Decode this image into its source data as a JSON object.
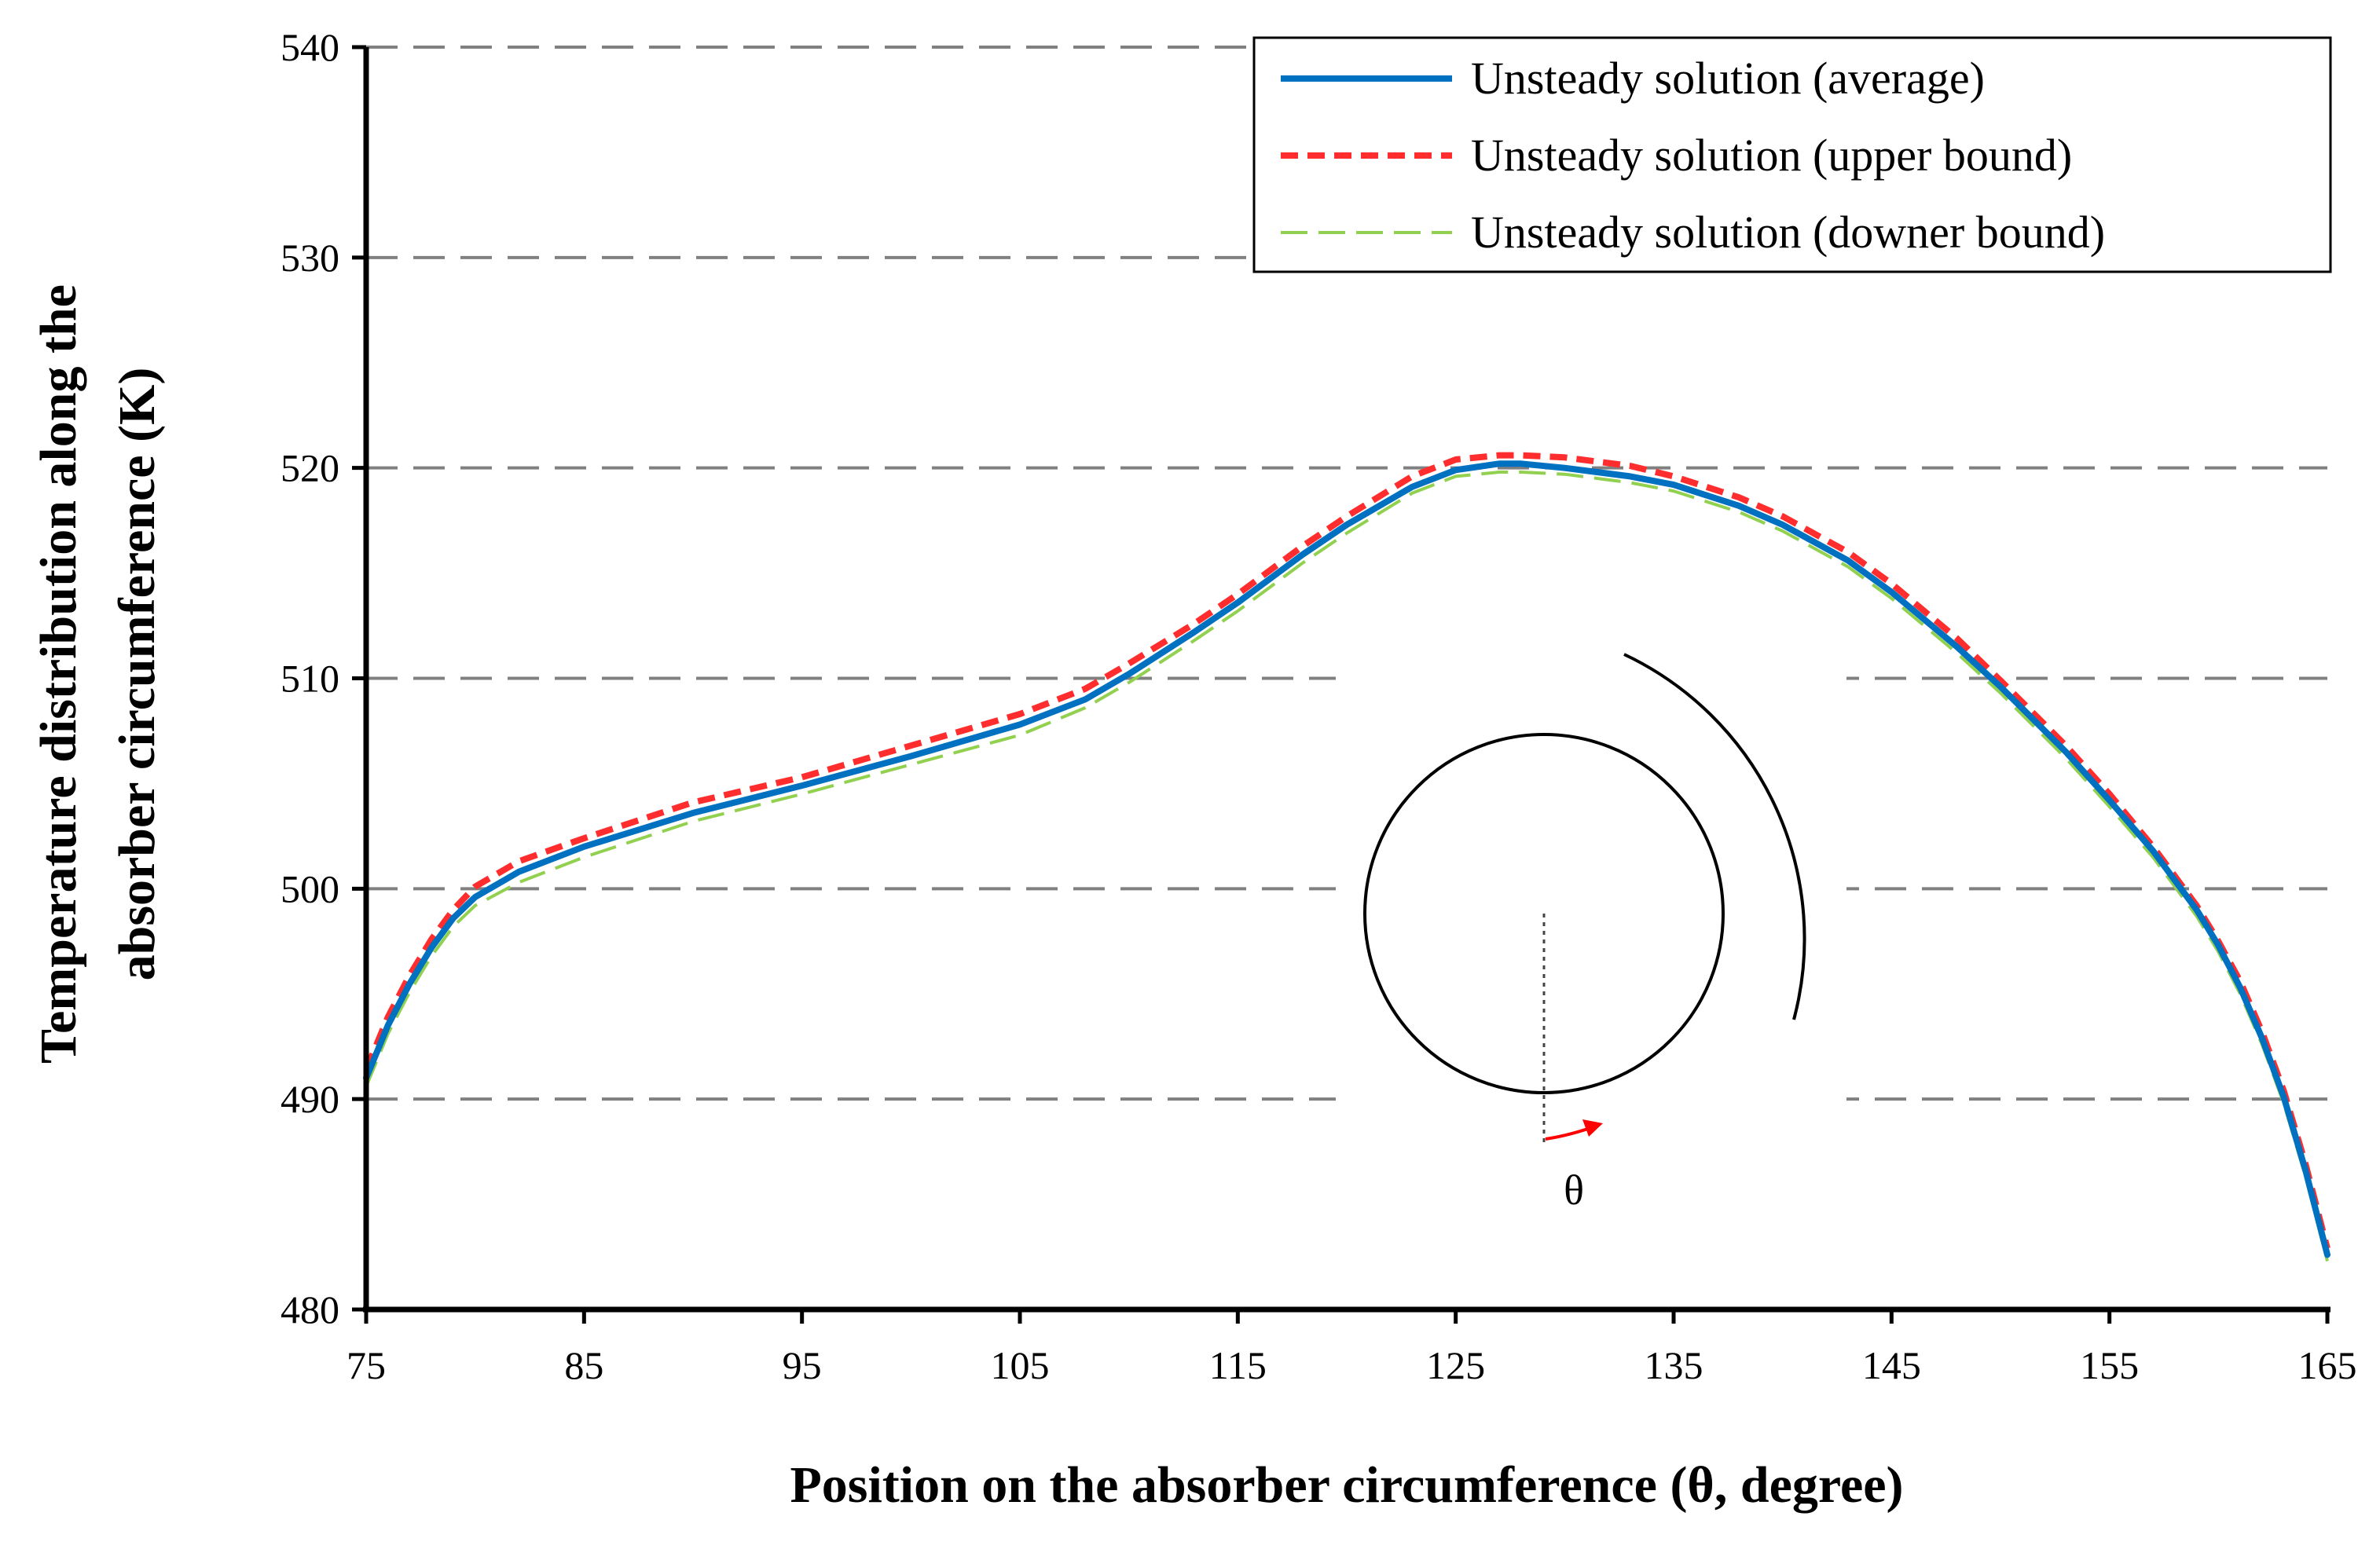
{
  "chart_data": {
    "type": "line",
    "xlabel": "Position on the absorber circumference (θ, degree)",
    "ylabel_line1": "Temperature distribution along the",
    "ylabel_line2": "absorber circumference (K)",
    "xlim": [
      75,
      165
    ],
    "ylim": [
      480,
      540
    ],
    "xticks": [
      "75",
      "85",
      "95",
      "105",
      "115",
      "125",
      "135",
      "145",
      "155",
      "165"
    ],
    "yticks": [
      "480",
      "490",
      "500",
      "510",
      "520",
      "530",
      "540"
    ],
    "grid": "horizontal dashed",
    "legend_position": "top-right",
    "x": [
      75,
      76,
      77,
      78,
      79,
      80,
      82,
      85,
      90,
      95,
      100,
      105,
      108,
      110,
      113,
      115,
      118,
      120,
      123,
      125,
      127,
      128,
      130,
      133,
      135,
      138,
      140,
      143,
      145,
      148,
      150,
      153,
      155,
      157,
      159,
      160,
      161,
      162,
      163,
      164,
      165
    ],
    "series": [
      {
        "name": "Unsteady solution (average)",
        "color": "#0070c0",
        "style": "solid",
        "values": [
          491.0,
          493.5,
          495.5,
          497.2,
          498.6,
          499.6,
          500.8,
          502.0,
          503.6,
          504.9,
          506.3,
          507.8,
          509.0,
          510.2,
          512.2,
          513.6,
          515.9,
          517.3,
          519.1,
          519.9,
          520.2,
          520.2,
          520.0,
          519.6,
          519.2,
          518.2,
          517.3,
          515.6,
          514.1,
          511.5,
          509.6,
          506.5,
          504.2,
          501.8,
          499.0,
          497.3,
          495.3,
          492.9,
          490.1,
          486.6,
          482.6
        ]
      },
      {
        "name": "Unsteady solution (upper bound)",
        "color": "#ff2d2d",
        "style": "dashed",
        "values": [
          491.4,
          493.9,
          495.9,
          497.6,
          499.0,
          500.1,
          501.3,
          502.4,
          504.1,
          505.3,
          506.8,
          508.3,
          509.5,
          510.7,
          512.6,
          514.0,
          516.3,
          517.7,
          519.6,
          520.4,
          520.6,
          520.6,
          520.5,
          520.1,
          519.6,
          518.6,
          517.7,
          516.0,
          514.5,
          511.9,
          509.9,
          506.8,
          504.5,
          502.0,
          499.2,
          497.5,
          495.6,
          493.2,
          490.4,
          486.9,
          482.9
        ]
      },
      {
        "name": "Unsteady solution (downer bound)",
        "color": "#92d050",
        "style": "long-dashed",
        "values": [
          490.6,
          493.1,
          495.1,
          496.8,
          498.2,
          499.2,
          500.3,
          501.5,
          503.2,
          504.5,
          505.9,
          507.3,
          508.6,
          509.8,
          511.8,
          513.2,
          515.5,
          516.9,
          518.8,
          519.6,
          519.8,
          519.8,
          519.7,
          519.3,
          518.9,
          517.9,
          517.0,
          515.3,
          513.8,
          511.2,
          509.3,
          506.2,
          503.9,
          501.5,
          498.7,
          497.0,
          495.0,
          492.6,
          489.8,
          486.3,
          482.3
        ]
      }
    ],
    "inset_label": "θ"
  }
}
